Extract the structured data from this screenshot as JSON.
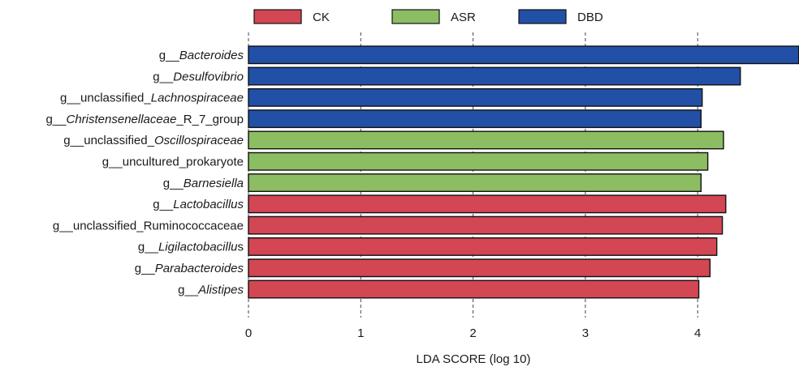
{
  "chart_data": {
    "type": "bar",
    "orientation": "horizontal",
    "xlabel": "LDA SCORE (log 10)",
    "xlim": [
      0,
      4.9
    ],
    "xticks": [
      "0",
      "1",
      "2",
      "3",
      "4"
    ],
    "grid": "vertical dashed",
    "legend_position": "top",
    "legend": [
      {
        "name": "CK",
        "color": "#d34654"
      },
      {
        "name": "ASR",
        "color": "#8cbd62"
      },
      {
        "name": "DBD",
        "color": "#2250a6"
      }
    ],
    "bars": [
      {
        "prefix": "g__",
        "name": "Bacteroides",
        "italic": true,
        "suffix": "",
        "group": "DBD",
        "value": 4.9
      },
      {
        "prefix": "g__",
        "name": "Desulfovibrio",
        "italic": true,
        "suffix": "",
        "group": "DBD",
        "value": 4.38
      },
      {
        "prefix": "g__unclassified_",
        "name": "Lachnospiraceae",
        "italic": true,
        "suffix": "",
        "group": "DBD",
        "value": 4.04
      },
      {
        "prefix": "g__",
        "name": "Christensenellaceae",
        "italic": true,
        "suffix": "_R_7_group",
        "group": "DBD",
        "value": 4.03
      },
      {
        "prefix": "g__unclassified_",
        "name": "Oscillospiraceae",
        "italic": true,
        "suffix": "",
        "group": "ASR",
        "value": 4.23
      },
      {
        "prefix": "g__uncultured_prokaryote",
        "name": "",
        "italic": false,
        "suffix": "",
        "group": "ASR",
        "value": 4.09
      },
      {
        "prefix": "g__",
        "name": "Barnesiella",
        "italic": true,
        "suffix": "",
        "group": "ASR",
        "value": 4.03
      },
      {
        "prefix": "g__",
        "name": "Lactobacillus",
        "italic": true,
        "suffix": "",
        "group": "CK",
        "value": 4.25
      },
      {
        "prefix": "g__unclassified_Ruminococcaceae",
        "name": "",
        "italic": false,
        "suffix": "",
        "group": "CK",
        "value": 4.22
      },
      {
        "prefix": "g__",
        "name": "Ligilactobacillu",
        "italic": true,
        "suffix": "s",
        "group": "CK",
        "value": 4.17
      },
      {
        "prefix": "g__",
        "name": "Parabacteroides",
        "italic": true,
        "suffix": "",
        "group": "CK",
        "value": 4.11
      },
      {
        "prefix": "g__",
        "name": "Alistipes",
        "italic": true,
        "suffix": "",
        "group": "CK",
        "value": 4.01
      }
    ]
  }
}
